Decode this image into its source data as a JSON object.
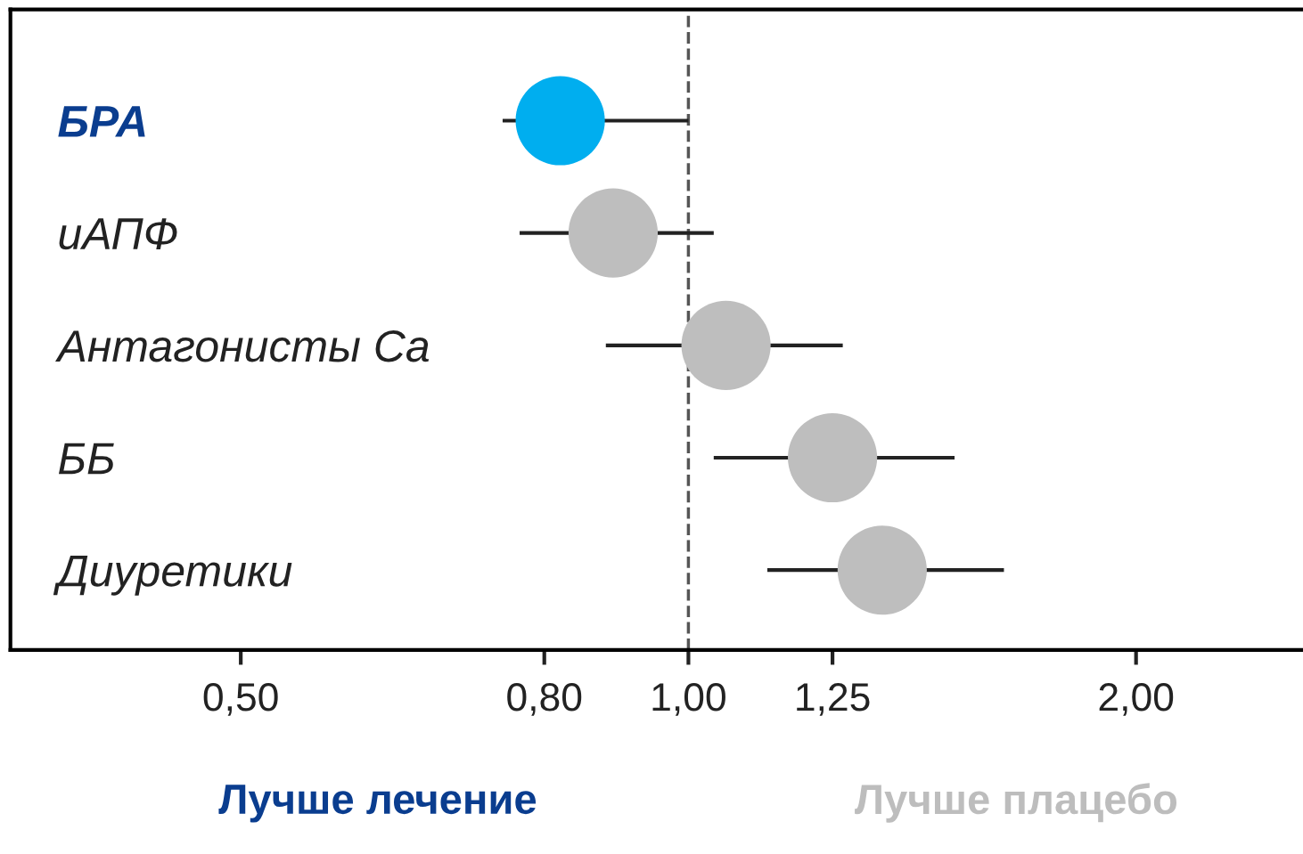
{
  "chart_data": {
    "type": "scatter",
    "orientation": "horizontal",
    "categories": [
      "БРА",
      "иАПФ",
      "Антагонисты Ca",
      "ББ",
      "Диуретики"
    ],
    "values": [
      0.82,
      0.89,
      1.06,
      1.25,
      1.35
    ],
    "errors": [
      [
        0.75,
        1.0
      ],
      [
        0.77,
        1.04
      ],
      [
        0.88,
        1.27
      ],
      [
        1.04,
        1.51
      ],
      [
        1.13,
        1.63
      ]
    ],
    "colors": [
      "#00aeef",
      "#bebebe",
      "#bebebe",
      "#bebebe",
      "#bebebe"
    ],
    "marker": "circle",
    "log": "x",
    "grid": false,
    "legend": false,
    "xlim": [
      0.35,
      2.59
    ],
    "xticks": [
      {
        "value": 0.5,
        "label": "0,50"
      },
      {
        "value": 0.8,
        "label": "0,80"
      },
      {
        "value": 1.0,
        "label": "1,00"
      },
      {
        "value": 1.25,
        "label": "1,25"
      },
      {
        "value": 2.0,
        "label": "2,00"
      }
    ],
    "ref_lines": [
      {
        "axis": "x",
        "value": 1.0,
        "label": null,
        "color": "#555555",
        "line_style": "dashed"
      }
    ],
    "annotations": [
      "Лучше лечение",
      "Лучше плацебо"
    ]
  }
}
